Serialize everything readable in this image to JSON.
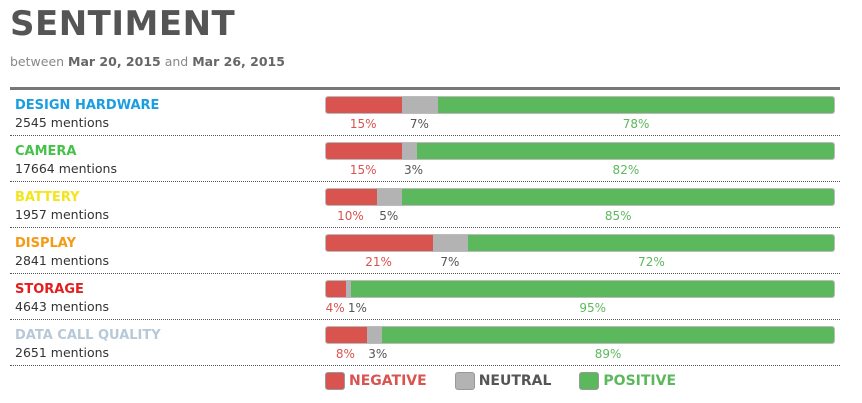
{
  "header": {
    "title": "SENTIMENT",
    "between_label": "between",
    "start_date": "Mar 20, 2015",
    "and_label": "and",
    "end_date": "Mar 26, 2015"
  },
  "colors": {
    "negative": "#d9534f",
    "neutral": "#b3b3b3",
    "positive": "#5cb85c"
  },
  "chart_data": {
    "type": "bar",
    "orientation": "horizontal",
    "stacked": true,
    "rows": [
      {
        "name": "DESIGN HARDWARE",
        "mentions": "2545 mentions",
        "color": "#1a9ee0",
        "negative": 15,
        "neutral": 7,
        "positive": 78
      },
      {
        "name": "CAMERA",
        "mentions": "17664 mentions",
        "color": "#45c24a",
        "negative": 15,
        "neutral": 3,
        "positive": 82
      },
      {
        "name": "BATTERY",
        "mentions": "1957 mentions",
        "color": "#f2e61b",
        "negative": 10,
        "neutral": 5,
        "positive": 85
      },
      {
        "name": "DISPLAY",
        "mentions": "2841 mentions",
        "color": "#f59a14",
        "negative": 21,
        "neutral": 7,
        "positive": 72
      },
      {
        "name": "STORAGE",
        "mentions": "4643 mentions",
        "color": "#e41e1e",
        "negative": 4,
        "neutral": 1,
        "positive": 95
      },
      {
        "name": "DATA CALL QUALITY",
        "mentions": "2651 mentions",
        "color": "#b7c9d9",
        "negative": 8,
        "neutral": 3,
        "positive": 89
      }
    ],
    "legend": [
      {
        "key": "negative",
        "label": "NEGATIVE"
      },
      {
        "key": "neutral",
        "label": "NEUTRAL"
      },
      {
        "key": "positive",
        "label": "POSITIVE"
      }
    ]
  }
}
